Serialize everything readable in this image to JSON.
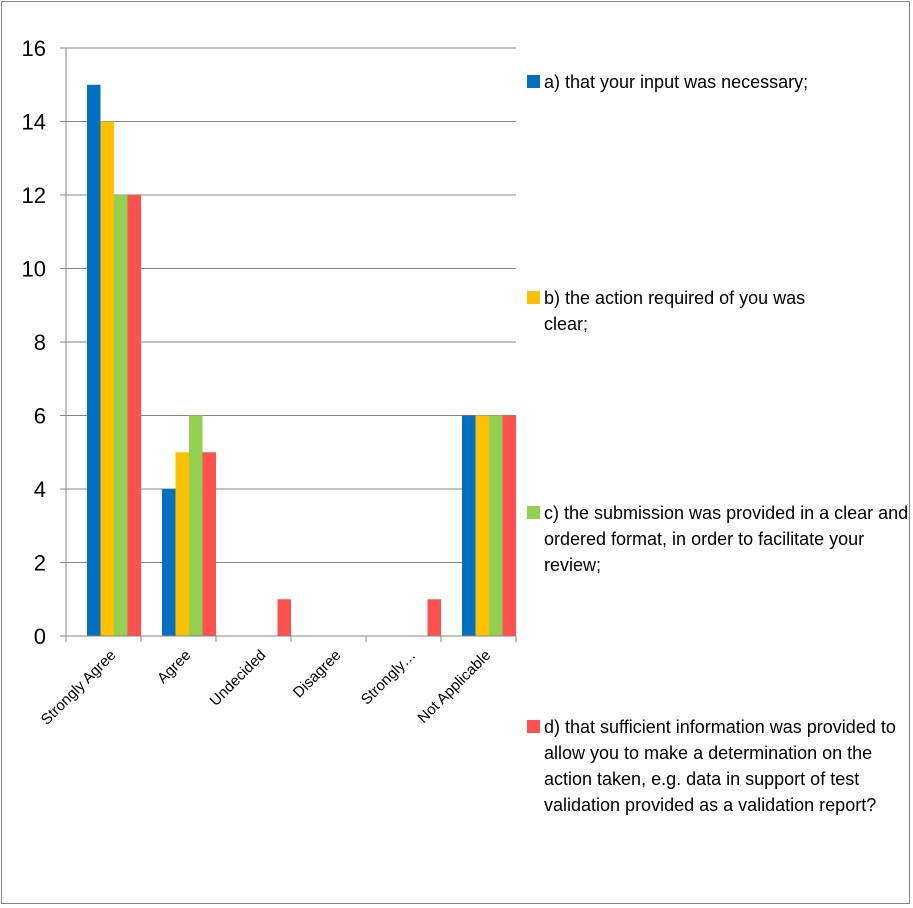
{
  "chart_data": {
    "type": "bar",
    "title": "",
    "xlabel": "",
    "ylabel": "",
    "categories": [
      "Strongly Agree",
      "Agree",
      "Undecided",
      "Disagree",
      "Strongly…",
      "Not Applicable"
    ],
    "series": [
      {
        "name": "a) that your input was necessary;",
        "color": "#0070C0",
        "values": [
          15,
          4,
          0,
          0,
          0,
          6
        ]
      },
      {
        "name": "b) the action required of you was clear;",
        "color": "#FFC000",
        "values": [
          14,
          5,
          0,
          0,
          0,
          6
        ]
      },
      {
        "name": "c) the submission was provided in a clear and ordered format, in order to facilitate your review;",
        "color": "#92D050",
        "values": [
          12,
          6,
          0,
          0,
          0,
          6
        ]
      },
      {
        "name": "d) that sufficient information was provided to allow you to make a determination on the action taken, e.g. data in support of test validation provided as a validation report?",
        "color": "#FF5050",
        "values": [
          12,
          5,
          1,
          0,
          1,
          6
        ]
      }
    ],
    "ylim": [
      0,
      16
    ],
    "yticks": [
      0,
      2,
      4,
      6,
      8,
      10,
      12,
      14,
      16
    ],
    "grid": true,
    "legend_position": "right"
  }
}
